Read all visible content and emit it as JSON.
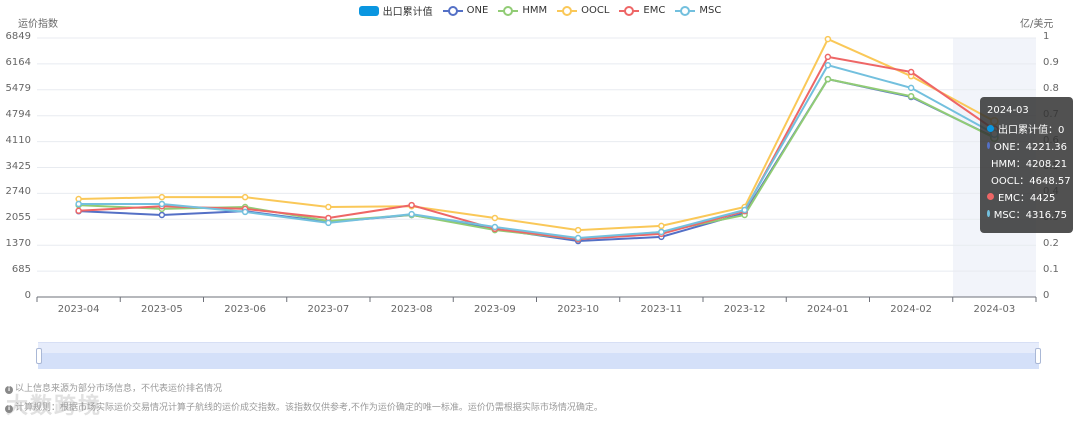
{
  "legend": [
    {
      "label": "出口累计值",
      "color": "#0a96e0",
      "type": "bar"
    },
    {
      "label": "ONE",
      "color": "#5470c6",
      "type": "line"
    },
    {
      "label": "HMM",
      "color": "#91cc75",
      "type": "line"
    },
    {
      "label": "OOCL",
      "color": "#fac858",
      "type": "line"
    },
    {
      "label": "EMC",
      "color": "#ee6666",
      "type": "line"
    },
    {
      "label": "MSC",
      "color": "#73c0de",
      "type": "line"
    }
  ],
  "axes": {
    "left_name": "运价指数",
    "right_name": "亿/美元",
    "left_ticks": [
      "0",
      "685",
      "1370",
      "2055",
      "2740",
      "3425",
      "4110",
      "4794",
      "5479",
      "6164",
      "6849"
    ],
    "right_ticks": [
      "0",
      "0.1",
      "0.2",
      "0.3",
      "0.4",
      "0.5",
      "0.6",
      "0.7",
      "0.8",
      "0.9",
      "1"
    ]
  },
  "tooltip": {
    "title": "2024-03",
    "rows": [
      {
        "label": "出口累计值",
        "value": "0",
        "color": "#0a96e0"
      },
      {
        "label": "ONE",
        "value": "4221.36",
        "color": "#5470c6"
      },
      {
        "label": "HMM",
        "value": "4208.21",
        "color": "#91cc75"
      },
      {
        "label": "OOCL",
        "value": "4648.57",
        "color": "#fac858"
      },
      {
        "label": "EMC",
        "value": "4425",
        "color": "#ee6666"
      },
      {
        "label": "MSC",
        "value": "4316.75",
        "color": "#73c0de"
      }
    ]
  },
  "notes": [
    "以上信息来源为部分市场信息，不代表运价排名情况",
    "计算规则：根据市场实际运价交易情况计算子航线的运价成交指数。该指数仅供参考,不作为运价确定的唯一标准。运价仍需根据实际市场情况确定。"
  ],
  "watermark": "大数跨境",
  "chart_data": {
    "type": "line",
    "title": "",
    "xlabel": "",
    "ylabel": "运价指数",
    "y2label": "亿/美元",
    "ylim": [
      0,
      6849
    ],
    "y2lim": [
      0,
      1
    ],
    "grid": true,
    "legend_position": "top",
    "categories": [
      "2023-04",
      "2023-05",
      "2023-06",
      "2023-07",
      "2023-08",
      "2023-09",
      "2023-10",
      "2023-11",
      "2023-12",
      "2024-01",
      "2024-02",
      "2024-03"
    ],
    "series": [
      {
        "name": "出口累计值",
        "type": "bar",
        "axis": "right",
        "values": [
          0,
          0,
          0,
          0,
          0,
          0,
          0,
          0,
          0,
          0,
          0,
          0
        ]
      },
      {
        "name": "ONE",
        "values": [
          2270,
          2170,
          2270,
          1980,
          2170,
          1800,
          1480,
          1590,
          2220,
          5760,
          5290,
          4221.36
        ]
      },
      {
        "name": "HMM",
        "values": [
          2430,
          2330,
          2380,
          2010,
          2170,
          1770,
          1530,
          1720,
          2170,
          5760,
          5310,
          4208.21
        ]
      },
      {
        "name": "OOCL",
        "values": [
          2590,
          2640,
          2640,
          2380,
          2400,
          2090,
          1770,
          1880,
          2380,
          6820,
          5840,
          4648.57
        ]
      },
      {
        "name": "EMC",
        "values": [
          2280,
          2400,
          2330,
          2090,
          2430,
          1800,
          1530,
          1670,
          2270,
          6350,
          5950,
          4425
        ]
      },
      {
        "name": "MSC",
        "values": [
          2460,
          2460,
          2250,
          1960,
          2190,
          1850,
          1560,
          1720,
          2300,
          6130,
          5530,
          4316.75
        ]
      }
    ],
    "highlighted_category": "2024-03"
  }
}
